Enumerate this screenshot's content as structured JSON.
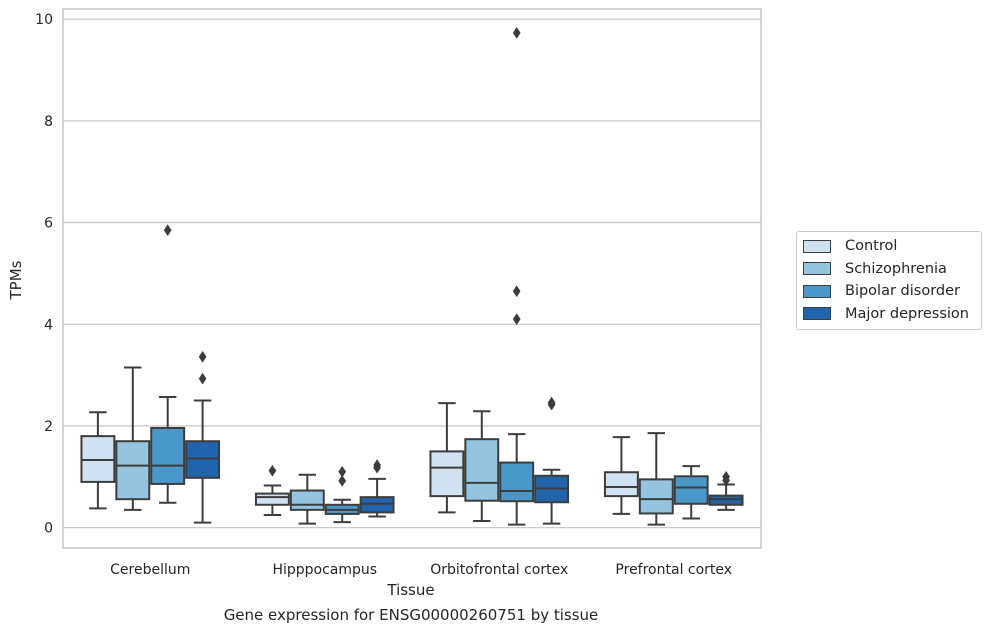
{
  "chart_data": {
    "type": "box",
    "title": "",
    "caption": "Gene expression for ENSG00000260751 by tissue",
    "xlabel": "Tissue",
    "ylabel": "TPMs",
    "ylim": [
      -0.4,
      10.2
    ],
    "yticks": [
      0,
      2,
      4,
      6,
      8,
      10
    ],
    "grid": true,
    "legend_position": "right",
    "categories": [
      "Cerebellum",
      "Hipppocampus",
      "Orbitofrontal cortex",
      "Prefrontal cortex"
    ],
    "series": [
      {
        "name": "Control",
        "color": "#d0e1f2",
        "boxes": [
          {
            "min": 0.38,
            "q1": 0.9,
            "median": 1.33,
            "q3": 1.8,
            "max": 2.27,
            "outliers": []
          },
          {
            "min": 0.25,
            "q1": 0.45,
            "median": 0.6,
            "q3": 0.67,
            "max": 0.83,
            "outliers": [
              1.12
            ]
          },
          {
            "min": 0.3,
            "q1": 0.62,
            "median": 1.18,
            "q3": 1.5,
            "max": 2.45,
            "outliers": []
          },
          {
            "min": 0.27,
            "q1": 0.62,
            "median": 0.8,
            "q3": 1.09,
            "max": 1.78,
            "outliers": []
          }
        ]
      },
      {
        "name": "Schizophrenia",
        "color": "#94c4df",
        "boxes": [
          {
            "min": 0.35,
            "q1": 0.56,
            "median": 1.22,
            "q3": 1.7,
            "max": 3.15,
            "outliers": []
          },
          {
            "min": 0.08,
            "q1": 0.35,
            "median": 0.45,
            "q3": 0.73,
            "max": 1.04,
            "outliers": []
          },
          {
            "min": 0.13,
            "q1": 0.53,
            "median": 0.88,
            "q3": 1.74,
            "max": 2.29,
            "outliers": []
          },
          {
            "min": 0.06,
            "q1": 0.28,
            "median": 0.56,
            "q3": 0.95,
            "max": 1.86,
            "outliers": []
          }
        ]
      },
      {
        "name": "Bipolar disorder",
        "color": "#4a98c9",
        "boxes": [
          {
            "min": 0.49,
            "q1": 0.86,
            "median": 1.22,
            "q3": 1.96,
            "max": 2.57,
            "outliers": [
              5.85
            ]
          },
          {
            "min": 0.11,
            "q1": 0.27,
            "median": 0.35,
            "q3": 0.45,
            "max": 0.55,
            "outliers": [
              0.92,
              1.1
            ]
          },
          {
            "min": 0.06,
            "q1": 0.52,
            "median": 0.72,
            "q3": 1.28,
            "max": 1.84,
            "outliers": [
              4.1,
              4.65,
              9.73
            ]
          },
          {
            "min": 0.18,
            "q1": 0.47,
            "median": 0.79,
            "q3": 1.01,
            "max": 1.21,
            "outliers": []
          }
        ]
      },
      {
        "name": "Major depression",
        "color": "#2164ab",
        "boxes": [
          {
            "min": 0.1,
            "q1": 0.98,
            "median": 1.36,
            "q3": 1.7,
            "max": 2.5,
            "outliers": [
              2.93,
              3.36
            ]
          },
          {
            "min": 0.22,
            "q1": 0.3,
            "median": 0.47,
            "q3": 0.6,
            "max": 0.96,
            "outliers": [
              1.18,
              1.23
            ]
          },
          {
            "min": 0.08,
            "q1": 0.5,
            "median": 0.77,
            "q3": 1.02,
            "max": 1.14,
            "outliers": [
              2.42,
              2.46
            ]
          },
          {
            "min": 0.35,
            "q1": 0.45,
            "median": 0.56,
            "q3": 0.63,
            "max": 0.85,
            "outliers": [
              0.93,
              1.0
            ]
          }
        ]
      }
    ]
  }
}
